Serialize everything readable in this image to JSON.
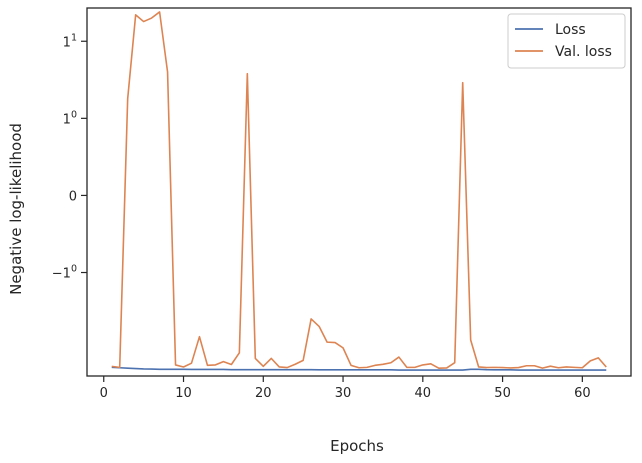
{
  "chart_data": {
    "type": "line",
    "title": "",
    "xlabel": "Epochs",
    "ylabel": "Negative log-likelihood",
    "yscale": "symlog",
    "xlim": [
      -2.1,
      66.1
    ],
    "ylim": [
      -22,
      27
    ],
    "xticks": [
      0,
      10,
      20,
      30,
      40,
      50,
      60
    ],
    "xtick_labels": [
      "0",
      "10",
      "20",
      "30",
      "40",
      "50",
      "60"
    ],
    "yticks": [
      -1,
      0,
      1,
      10
    ],
    "ytick_labels": [
      {
        "base": "−1",
        "exp": "0"
      },
      {
        "base": "0",
        "exp": ""
      },
      {
        "base": "1",
        "exp": "0"
      },
      {
        "base": "1",
        "exp": "1"
      }
    ],
    "grid": false,
    "legend": "top-right",
    "colors": {
      "Loss": "#4c72b0",
      "Val. loss": "#dd8452",
      "axes": "#262626"
    },
    "series": [
      {
        "name": "Loss",
        "x": [
          1,
          2,
          3,
          4,
          5,
          6,
          7,
          8,
          9,
          10,
          11,
          12,
          13,
          14,
          15,
          16,
          17,
          18,
          19,
          20,
          21,
          22,
          23,
          24,
          25,
          26,
          27,
          28,
          29,
          30,
          31,
          32,
          33,
          34,
          35,
          36,
          37,
          38,
          39,
          40,
          41,
          42,
          43,
          44,
          45,
          46,
          47,
          48,
          49,
          50,
          51,
          52,
          53,
          54,
          55,
          56,
          57,
          58,
          59,
          60,
          61,
          62,
          63
        ],
        "y": [
          -17.0,
          -17.2,
          -17.4,
          -17.6,
          -17.8,
          -17.9,
          -18.0,
          -18.0,
          -18.0,
          -18.0,
          -18.1,
          -18.1,
          -18.1,
          -18.1,
          -18.1,
          -18.2,
          -18.2,
          -18.2,
          -18.2,
          -18.2,
          -18.2,
          -18.2,
          -18.2,
          -18.2,
          -18.2,
          -18.2,
          -18.3,
          -18.3,
          -18.3,
          -18.3,
          -18.3,
          -18.3,
          -18.3,
          -18.3,
          -18.3,
          -18.3,
          -18.4,
          -18.4,
          -18.4,
          -18.4,
          -18.4,
          -18.4,
          -18.4,
          -18.4,
          -18.4,
          -18.0,
          -18.0,
          -18.2,
          -18.3,
          -18.3,
          -18.3,
          -18.4,
          -18.4,
          -18.4,
          -18.4,
          -18.4,
          -18.4,
          -18.4,
          -18.4,
          -18.4,
          -18.4,
          -18.4,
          -18.4
        ]
      },
      {
        "name": "Val. loss",
        "x": [
          1,
          2,
          3,
          4,
          5,
          6,
          7,
          8,
          9,
          10,
          11,
          12,
          13,
          14,
          15,
          16,
          17,
          18,
          19,
          20,
          21,
          22,
          23,
          24,
          25,
          26,
          27,
          28,
          29,
          30,
          31,
          32,
          33,
          34,
          35,
          36,
          37,
          38,
          39,
          40,
          41,
          42,
          43,
          44,
          45,
          46,
          47,
          48,
          49,
          50,
          51,
          52,
          53,
          54,
          55,
          56,
          57,
          58,
          59,
          60,
          61,
          62,
          63
        ],
        "y": [
          -16.5,
          -17.0,
          1.8,
          22.0,
          18.0,
          20.0,
          24.0,
          4.0,
          -15.8,
          -16.8,
          -15.0,
          -6.8,
          -16.0,
          -15.8,
          -14.3,
          -15.6,
          -11.0,
          3.8,
          -13.0,
          -16.5,
          -13.0,
          -16.8,
          -17.1,
          -15.5,
          -13.8,
          -4.0,
          -5.0,
          -8.0,
          -8.1,
          -9.5,
          -16.0,
          -17.2,
          -17.0,
          -16.0,
          -15.5,
          -14.8,
          -12.5,
          -17.0,
          -17.0,
          -15.8,
          -15.3,
          -17.4,
          -17.3,
          -14.8,
          2.9,
          -7.5,
          -16.8,
          -17.1,
          -17.0,
          -17.1,
          -17.3,
          -17.1,
          -16.2,
          -16.2,
          -17.4,
          -16.4,
          -17.2,
          -16.8,
          -17.0,
          -17.2,
          -14.0,
          -12.8,
          -16.8
        ]
      }
    ]
  }
}
